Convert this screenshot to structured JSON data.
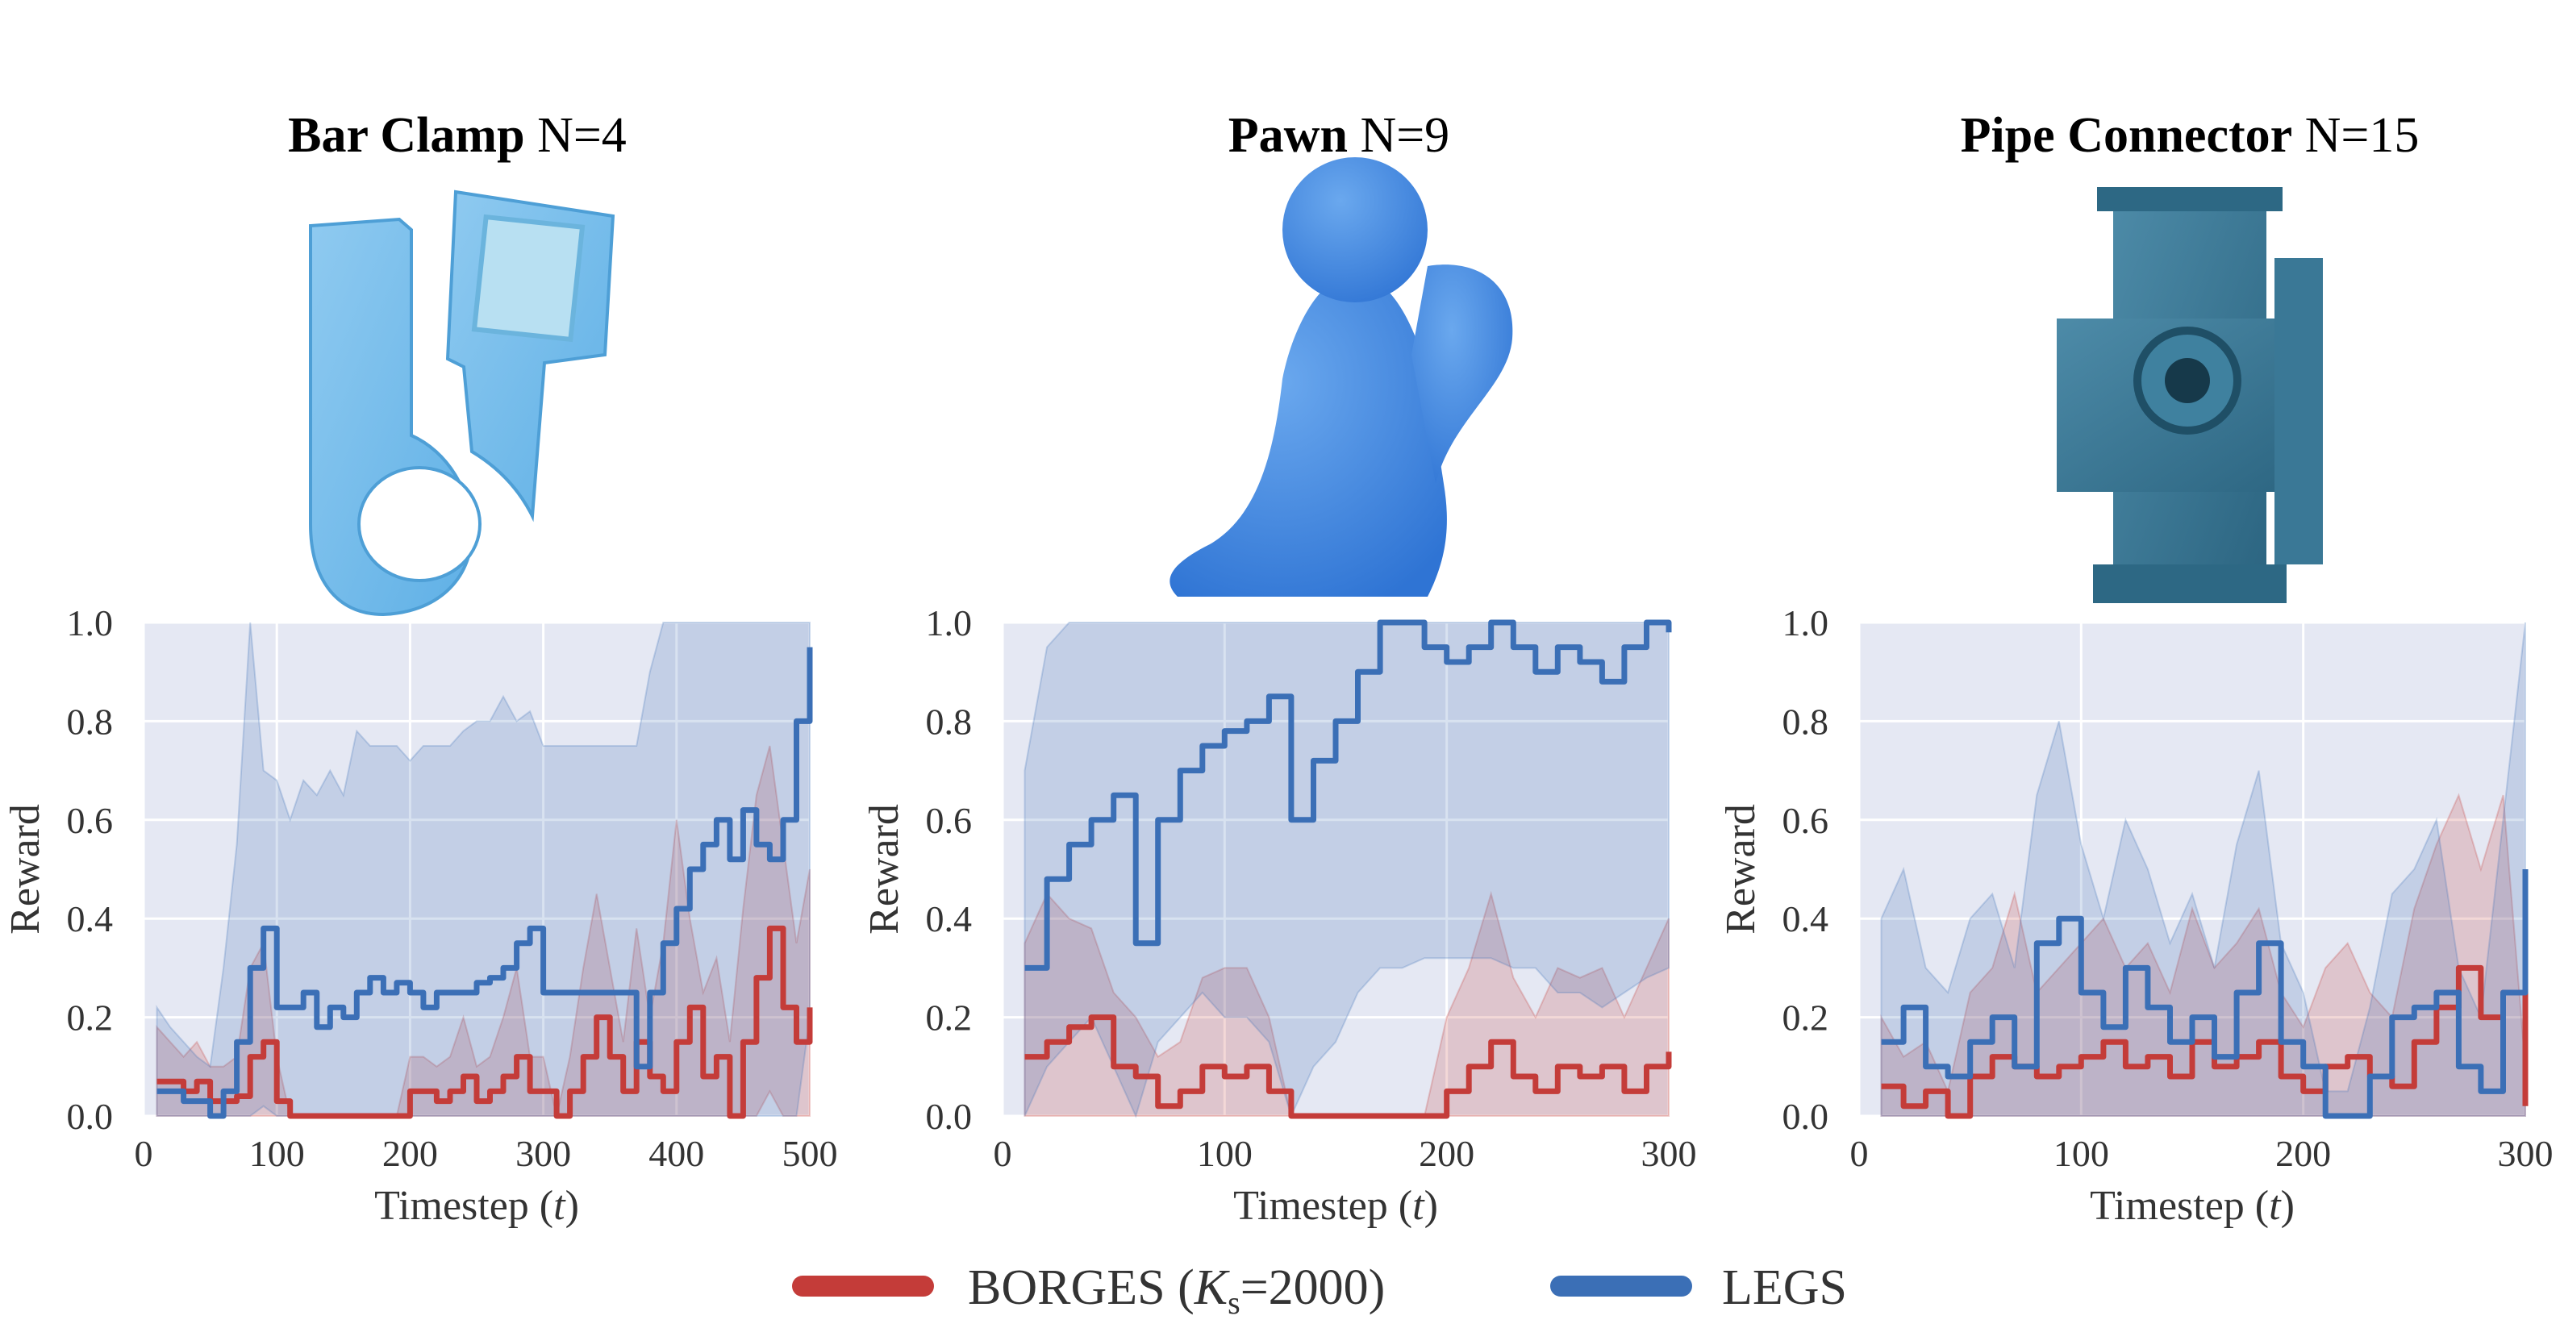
{
  "colors": {
    "borges": "#c43c39",
    "legs": "#3b6fb6",
    "plot_bg": "#e5e8f3",
    "grid": "#ffffff"
  },
  "legend": {
    "placement": "bottom-center",
    "borges_label": "BORGES (",
    "borges_k": "K",
    "borges_sub": "s",
    "borges_rest": "=2000)",
    "legs_label": "LEGS"
  },
  "chart_data": [
    {
      "type": "line",
      "title_bold": "Bar Clamp",
      "title_rest": " N=4",
      "object_icon": "bar-clamp-object",
      "xlabel_prefix": "Timestep (",
      "xlabel_var": "t",
      "xlabel_suffix": ")",
      "ylabel": "Reward",
      "xlim": [
        0,
        500
      ],
      "ylim": [
        0,
        1.0
      ],
      "xticks": [
        "0",
        "100",
        "200",
        "300",
        "400",
        "500"
      ],
      "yticks": [
        "0.0",
        "0.2",
        "0.4",
        "0.6",
        "0.8",
        "1.0"
      ],
      "grid": true,
      "series": [
        {
          "name": "BORGES",
          "x": [
            10,
            20,
            30,
            40,
            50,
            60,
            70,
            80,
            90,
            100,
            110,
            120,
            130,
            140,
            150,
            160,
            170,
            180,
            190,
            200,
            210,
            220,
            230,
            240,
            250,
            260,
            270,
            280,
            290,
            300,
            310,
            320,
            330,
            340,
            350,
            360,
            370,
            380,
            390,
            400,
            410,
            420,
            430,
            440,
            450,
            460,
            470,
            480,
            490,
            500
          ],
          "mean": [
            0.07,
            0.07,
            0.05,
            0.07,
            0.03,
            0.03,
            0.04,
            0.12,
            0.15,
            0.03,
            0.0,
            0.0,
            0.0,
            0.0,
            0.0,
            0.0,
            0.0,
            0.0,
            0.0,
            0.05,
            0.05,
            0.03,
            0.05,
            0.08,
            0.03,
            0.05,
            0.08,
            0.12,
            0.05,
            0.05,
            0.0,
            0.05,
            0.12,
            0.2,
            0.12,
            0.05,
            0.15,
            0.08,
            0.05,
            0.15,
            0.22,
            0.08,
            0.12,
            0.0,
            0.15,
            0.28,
            0.38,
            0.22,
            0.15,
            0.22
          ],
          "lower": [
            0.0,
            0.0,
            0.0,
            0.0,
            0.0,
            0.0,
            0.0,
            0.0,
            0.0,
            0.0,
            0.0,
            0.0,
            0.0,
            0.0,
            0.0,
            0.0,
            0.0,
            0.0,
            0.0,
            0.0,
            0.0,
            0.0,
            0.0,
            0.0,
            0.0,
            0.0,
            0.0,
            0.0,
            0.0,
            0.0,
            0.0,
            0.0,
            0.0,
            0.0,
            0.0,
            0.0,
            0.0,
            0.0,
            0.0,
            0.0,
            0.0,
            0.0,
            0.0,
            0.0,
            0.0,
            0.0,
            0.05,
            0.0,
            0.0,
            0.0
          ],
          "upper": [
            0.18,
            0.15,
            0.12,
            0.15,
            0.1,
            0.1,
            0.12,
            0.3,
            0.35,
            0.12,
            0.0,
            0.0,
            0.0,
            0.0,
            0.0,
            0.0,
            0.0,
            0.0,
            0.0,
            0.12,
            0.12,
            0.1,
            0.12,
            0.2,
            0.1,
            0.12,
            0.2,
            0.3,
            0.12,
            0.12,
            0.0,
            0.12,
            0.3,
            0.45,
            0.3,
            0.15,
            0.38,
            0.2,
            0.35,
            0.6,
            0.4,
            0.25,
            0.32,
            0.15,
            0.42,
            0.65,
            0.75,
            0.55,
            0.35,
            0.5
          ]
        },
        {
          "name": "LEGS",
          "x": [
            10,
            20,
            30,
            40,
            50,
            60,
            70,
            80,
            90,
            100,
            110,
            120,
            130,
            140,
            150,
            160,
            170,
            180,
            190,
            200,
            210,
            220,
            230,
            240,
            250,
            260,
            270,
            280,
            290,
            300,
            310,
            320,
            330,
            340,
            350,
            360,
            370,
            380,
            390,
            400,
            410,
            420,
            430,
            440,
            450,
            460,
            470,
            480,
            490,
            500
          ],
          "mean": [
            0.05,
            0.05,
            0.03,
            0.03,
            0.0,
            0.05,
            0.15,
            0.3,
            0.38,
            0.22,
            0.22,
            0.25,
            0.18,
            0.22,
            0.2,
            0.25,
            0.28,
            0.25,
            0.27,
            0.25,
            0.22,
            0.25,
            0.25,
            0.25,
            0.27,
            0.28,
            0.3,
            0.35,
            0.38,
            0.25,
            0.25,
            0.25,
            0.25,
            0.25,
            0.25,
            0.25,
            0.1,
            0.25,
            0.35,
            0.42,
            0.5,
            0.55,
            0.6,
            0.52,
            0.62,
            0.55,
            0.52,
            0.6,
            0.8,
            0.95
          ],
          "lower": [
            0.0,
            0.0,
            0.0,
            0.0,
            0.0,
            0.0,
            0.0,
            0.0,
            0.02,
            0.0,
            0.0,
            0.0,
            0.0,
            0.0,
            0.0,
            0.0,
            0.0,
            0.0,
            0.0,
            0.0,
            0.0,
            0.0,
            0.0,
            0.0,
            0.0,
            0.0,
            0.0,
            0.0,
            0.0,
            0.0,
            0.0,
            0.0,
            0.0,
            0.0,
            0.0,
            0.0,
            0.0,
            0.0,
            0.0,
            0.0,
            0.0,
            0.0,
            0.0,
            0.0,
            0.0,
            0.0,
            0.0,
            0.0,
            0.0,
            0.2
          ],
          "upper": [
            0.22,
            0.18,
            0.15,
            0.12,
            0.1,
            0.3,
            0.55,
            1.0,
            0.7,
            0.68,
            0.6,
            0.68,
            0.65,
            0.7,
            0.65,
            0.78,
            0.75,
            0.75,
            0.75,
            0.72,
            0.75,
            0.75,
            0.75,
            0.78,
            0.8,
            0.8,
            0.85,
            0.8,
            0.82,
            0.75,
            0.75,
            0.75,
            0.75,
            0.75,
            0.75,
            0.75,
            0.75,
            0.9,
            1.0,
            1.0,
            1.0,
            1.0,
            1.0,
            1.0,
            1.0,
            1.0,
            1.0,
            1.0,
            1.0,
            1.0
          ]
        }
      ]
    },
    {
      "type": "line",
      "title_bold": "Pawn",
      "title_rest": " N=9",
      "object_icon": "pawn-object",
      "xlabel_prefix": "Timestep (",
      "xlabel_var": "t",
      "xlabel_suffix": ")",
      "ylabel": "Reward",
      "xlim": [
        0,
        300
      ],
      "ylim": [
        0,
        1.0
      ],
      "xticks": [
        "0",
        "100",
        "200",
        "300"
      ],
      "yticks": [
        "0.0",
        "0.2",
        "0.4",
        "0.6",
        "0.8",
        "1.0"
      ],
      "grid": true,
      "series": [
        {
          "name": "BORGES",
          "x": [
            10,
            20,
            30,
            40,
            50,
            60,
            70,
            80,
            90,
            100,
            110,
            120,
            130,
            140,
            150,
            160,
            170,
            180,
            190,
            200,
            210,
            220,
            230,
            240,
            250,
            260,
            270,
            280,
            290,
            300
          ],
          "mean": [
            0.12,
            0.15,
            0.18,
            0.2,
            0.1,
            0.08,
            0.02,
            0.05,
            0.1,
            0.08,
            0.1,
            0.05,
            0.0,
            0.0,
            0.0,
            0.0,
            0.0,
            0.0,
            0.0,
            0.05,
            0.1,
            0.15,
            0.08,
            0.05,
            0.1,
            0.08,
            0.1,
            0.05,
            0.1,
            0.13
          ],
          "lower": [
            0.0,
            0.0,
            0.0,
            0.0,
            0.0,
            0.0,
            0.0,
            0.0,
            0.0,
            0.0,
            0.0,
            0.0,
            0.0,
            0.0,
            0.0,
            0.0,
            0.0,
            0.0,
            0.0,
            0.0,
            0.0,
            0.0,
            0.0,
            0.0,
            0.0,
            0.0,
            0.0,
            0.0,
            0.0,
            0.0
          ],
          "upper": [
            0.35,
            0.45,
            0.4,
            0.38,
            0.25,
            0.2,
            0.12,
            0.15,
            0.28,
            0.3,
            0.3,
            0.2,
            0.0,
            0.0,
            0.0,
            0.0,
            0.0,
            0.0,
            0.0,
            0.2,
            0.3,
            0.45,
            0.28,
            0.2,
            0.3,
            0.28,
            0.3,
            0.2,
            0.3,
            0.4
          ]
        },
        {
          "name": "LEGS",
          "x": [
            10,
            20,
            30,
            40,
            50,
            60,
            70,
            80,
            90,
            100,
            110,
            120,
            130,
            140,
            150,
            160,
            170,
            180,
            190,
            200,
            210,
            220,
            230,
            240,
            250,
            260,
            270,
            280,
            290,
            300
          ],
          "mean": [
            0.3,
            0.48,
            0.55,
            0.6,
            0.65,
            0.35,
            0.6,
            0.7,
            0.75,
            0.78,
            0.8,
            0.85,
            0.6,
            0.72,
            0.8,
            0.9,
            1.0,
            1.0,
            0.95,
            0.92,
            0.95,
            1.0,
            0.95,
            0.9,
            0.95,
            0.92,
            0.88,
            0.95,
            1.0,
            0.98
          ],
          "lower": [
            0.0,
            0.1,
            0.15,
            0.2,
            0.1,
            0.0,
            0.15,
            0.2,
            0.25,
            0.2,
            0.2,
            0.15,
            0.0,
            0.1,
            0.15,
            0.25,
            0.3,
            0.3,
            0.32,
            0.32,
            0.32,
            0.32,
            0.3,
            0.3,
            0.25,
            0.25,
            0.22,
            0.25,
            0.28,
            0.3
          ],
          "upper": [
            0.7,
            0.95,
            1.0,
            1.0,
            1.0,
            1.0,
            1.0,
            1.0,
            1.0,
            1.0,
            1.0,
            1.0,
            1.0,
            1.0,
            1.0,
            1.0,
            1.0,
            1.0,
            1.0,
            1.0,
            1.0,
            1.0,
            1.0,
            1.0,
            1.0,
            1.0,
            1.0,
            1.0,
            1.0,
            1.0
          ]
        }
      ]
    },
    {
      "type": "line",
      "title_bold": "Pipe Connector",
      "title_rest": " N=15",
      "object_icon": "pipe-connector-object",
      "xlabel_prefix": "Timestep (",
      "xlabel_var": "t",
      "xlabel_suffix": ")",
      "ylabel": "Reward",
      "xlim": [
        0,
        300
      ],
      "ylim": [
        0,
        1.0
      ],
      "xticks": [
        "0",
        "100",
        "200",
        "300"
      ],
      "yticks": [
        "0.0",
        "0.2",
        "0.4",
        "0.6",
        "0.8",
        "1.0"
      ],
      "grid": true,
      "series": [
        {
          "name": "BORGES",
          "x": [
            10,
            20,
            30,
            40,
            50,
            60,
            70,
            80,
            90,
            100,
            110,
            120,
            130,
            140,
            150,
            160,
            170,
            180,
            190,
            200,
            210,
            220,
            230,
            240,
            250,
            260,
            270,
            280,
            290,
            300
          ],
          "mean": [
            0.06,
            0.02,
            0.05,
            0.0,
            0.08,
            0.12,
            0.1,
            0.08,
            0.1,
            0.12,
            0.15,
            0.1,
            0.12,
            0.08,
            0.15,
            0.1,
            0.12,
            0.15,
            0.08,
            0.05,
            0.1,
            0.12,
            0.08,
            0.06,
            0.15,
            0.22,
            0.3,
            0.2,
            0.25,
            0.02
          ],
          "lower": [
            0.0,
            0.0,
            0.0,
            0.0,
            0.0,
            0.0,
            0.0,
            0.0,
            0.0,
            0.0,
            0.0,
            0.0,
            0.0,
            0.0,
            0.0,
            0.0,
            0.0,
            0.0,
            0.0,
            0.0,
            0.0,
            0.0,
            0.0,
            0.0,
            0.0,
            0.0,
            0.0,
            0.0,
            0.0,
            0.0
          ],
          "upper": [
            0.2,
            0.12,
            0.15,
            0.05,
            0.25,
            0.3,
            0.45,
            0.25,
            0.3,
            0.35,
            0.4,
            0.3,
            0.35,
            0.25,
            0.42,
            0.3,
            0.35,
            0.42,
            0.25,
            0.18,
            0.3,
            0.35,
            0.25,
            0.2,
            0.42,
            0.55,
            0.65,
            0.5,
            0.65,
            0.1
          ]
        },
        {
          "name": "LEGS",
          "x": [
            10,
            20,
            30,
            40,
            50,
            60,
            70,
            80,
            90,
            100,
            110,
            120,
            130,
            140,
            150,
            160,
            170,
            180,
            190,
            200,
            210,
            220,
            230,
            240,
            250,
            260,
            270,
            280,
            290,
            300
          ],
          "mean": [
            0.15,
            0.22,
            0.1,
            0.08,
            0.15,
            0.2,
            0.1,
            0.35,
            0.4,
            0.25,
            0.18,
            0.3,
            0.22,
            0.15,
            0.2,
            0.12,
            0.25,
            0.35,
            0.15,
            0.1,
            0.0,
            0.0,
            0.08,
            0.2,
            0.22,
            0.25,
            0.1,
            0.05,
            0.25,
            0.5
          ],
          "lower": [
            0.0,
            0.0,
            0.0,
            0.0,
            0.0,
            0.0,
            0.0,
            0.0,
            0.0,
            0.0,
            0.0,
            0.0,
            0.0,
            0.0,
            0.0,
            0.0,
            0.0,
            0.0,
            0.0,
            0.0,
            0.0,
            0.0,
            0.0,
            0.0,
            0.0,
            0.0,
            0.0,
            0.0,
            0.0,
            0.0
          ],
          "upper": [
            0.4,
            0.5,
            0.3,
            0.25,
            0.4,
            0.45,
            0.3,
            0.65,
            0.8,
            0.55,
            0.4,
            0.6,
            0.5,
            0.35,
            0.45,
            0.3,
            0.55,
            0.7,
            0.35,
            0.25,
            0.05,
            0.05,
            0.22,
            0.45,
            0.5,
            0.6,
            0.3,
            0.2,
            0.6,
            1.0
          ]
        }
      ]
    }
  ]
}
